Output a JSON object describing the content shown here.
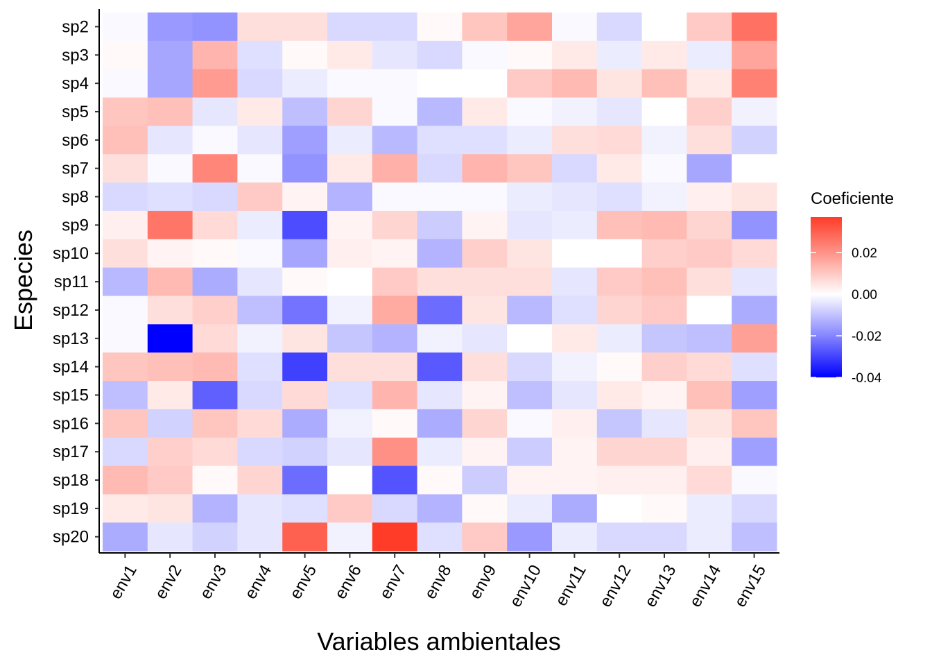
{
  "chart_data": {
    "type": "heatmap",
    "title": "",
    "xlabel": "Variables ambientales",
    "ylabel": "Especies",
    "x_categories": [
      "env1",
      "env2",
      "env3",
      "env4",
      "env5",
      "env6",
      "env7",
      "env8",
      "env9",
      "env10",
      "env11",
      "env12",
      "env13",
      "env14",
      "env15"
    ],
    "y_categories": [
      "sp2",
      "sp3",
      "sp4",
      "sp5",
      "sp6",
      "sp7",
      "sp8",
      "sp9",
      "sp10",
      "sp11",
      "sp12",
      "sp13",
      "sp14",
      "sp15",
      "sp16",
      "sp17",
      "sp18",
      "sp19",
      "sp20"
    ],
    "values": [
      [
        -0.001,
        -0.016,
        -0.017,
        0.006,
        0.006,
        -0.006,
        -0.006,
        0.001,
        0.011,
        0.017,
        -0.001,
        -0.006,
        0.0,
        0.01,
        0.027
      ],
      [
        0.001,
        -0.014,
        0.014,
        -0.005,
        0.001,
        0.004,
        -0.004,
        -0.006,
        -0.001,
        0.001,
        0.004,
        -0.003,
        0.004,
        -0.003,
        0.017
      ],
      [
        -0.001,
        -0.014,
        0.019,
        -0.006,
        -0.003,
        -0.001,
        -0.001,
        0.0,
        0.0,
        0.01,
        0.013,
        0.005,
        0.012,
        0.004,
        0.024
      ],
      [
        0.011,
        0.012,
        -0.004,
        0.004,
        -0.01,
        0.008,
        -0.001,
        -0.011,
        0.004,
        -0.001,
        -0.002,
        -0.004,
        0.0,
        0.009,
        -0.002
      ],
      [
        0.012,
        -0.004,
        -0.001,
        -0.004,
        -0.015,
        -0.003,
        -0.011,
        -0.005,
        -0.005,
        -0.003,
        0.006,
        0.007,
        -0.002,
        0.006,
        -0.007
      ],
      [
        0.006,
        -0.001,
        0.023,
        -0.001,
        -0.017,
        0.004,
        0.015,
        -0.006,
        0.014,
        0.011,
        -0.006,
        0.004,
        -0.001,
        -0.014,
        0.0
      ],
      [
        -0.006,
        -0.005,
        -0.006,
        0.01,
        0.002,
        -0.012,
        -0.001,
        -0.001,
        -0.001,
        -0.003,
        -0.004,
        -0.005,
        -0.002,
        0.003,
        0.005
      ],
      [
        0.003,
        0.026,
        0.007,
        -0.003,
        -0.028,
        0.002,
        0.008,
        -0.008,
        0.002,
        -0.004,
        -0.003,
        0.012,
        0.013,
        0.008,
        -0.017
      ],
      [
        0.006,
        0.002,
        0.001,
        -0.001,
        -0.014,
        0.003,
        0.002,
        -0.012,
        0.009,
        0.005,
        0.0,
        0.0,
        0.009,
        0.01,
        0.007
      ],
      [
        -0.011,
        0.013,
        -0.013,
        -0.004,
        0.001,
        0.0,
        0.01,
        0.006,
        0.006,
        0.006,
        -0.004,
        0.01,
        0.012,
        0.006,
        -0.004
      ],
      [
        -0.001,
        0.006,
        0.009,
        -0.01,
        -0.022,
        -0.002,
        0.016,
        -0.023,
        0.005,
        -0.011,
        -0.005,
        0.008,
        0.01,
        0.0,
        -0.013
      ],
      [
        -0.001,
        -0.04,
        0.007,
        -0.002,
        0.005,
        -0.009,
        -0.012,
        -0.002,
        -0.004,
        0.0,
        0.004,
        -0.003,
        -0.009,
        -0.01,
        0.018
      ],
      [
        0.011,
        0.012,
        0.013,
        -0.005,
        -0.03,
        0.006,
        0.006,
        -0.026,
        0.006,
        -0.006,
        -0.002,
        0.001,
        0.009,
        0.007,
        -0.005
      ],
      [
        -0.01,
        0.004,
        -0.025,
        -0.006,
        0.007,
        -0.005,
        0.014,
        -0.004,
        0.002,
        -0.01,
        -0.004,
        0.004,
        0.002,
        0.012,
        -0.015
      ],
      [
        0.011,
        -0.007,
        0.011,
        0.007,
        -0.013,
        -0.002,
        0.001,
        -0.013,
        0.008,
        -0.001,
        0.003,
        -0.009,
        -0.004,
        0.005,
        0.011
      ],
      [
        -0.006,
        0.009,
        0.007,
        -0.006,
        -0.007,
        -0.004,
        0.021,
        -0.003,
        0.002,
        -0.008,
        0.002,
        0.008,
        0.008,
        0.003,
        -0.015
      ],
      [
        0.013,
        0.01,
        0.001,
        0.008,
        -0.023,
        0.0,
        -0.027,
        0.001,
        -0.008,
        0.002,
        0.002,
        0.003,
        0.003,
        0.007,
        -0.001
      ],
      [
        0.004,
        0.005,
        -0.012,
        -0.004,
        -0.005,
        0.01,
        -0.006,
        -0.012,
        0.001,
        -0.003,
        -0.013,
        0.0,
        0.001,
        -0.003,
        -0.006
      ],
      [
        -0.013,
        -0.004,
        -0.007,
        -0.004,
        0.03,
        -0.002,
        0.037,
        -0.005,
        0.01,
        -0.016,
        -0.003,
        -0.006,
        -0.006,
        -0.003,
        -0.01
      ]
    ],
    "legend": {
      "title": "Coeficiente",
      "ticks": [
        0.02,
        0.0,
        -0.02,
        -0.04
      ],
      "tick_labels": [
        "0.02",
        "0.00",
        "-0.02",
        "-0.04"
      ],
      "range": [
        -0.04,
        0.037
      ],
      "low_color": "#0000ff",
      "mid_color": "#ffffff",
      "high_color": "#ff3c28"
    },
    "grid": false,
    "legend_position": "right"
  }
}
